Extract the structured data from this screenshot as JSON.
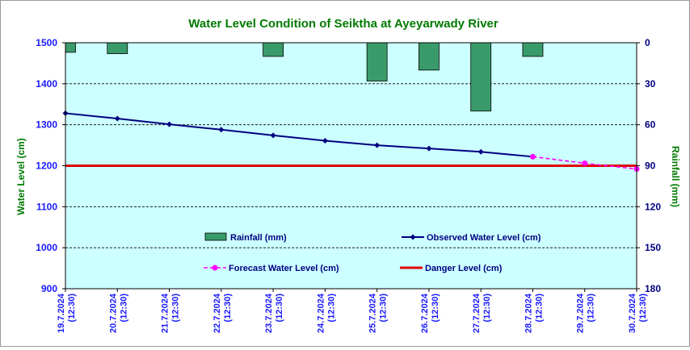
{
  "chart_data": {
    "type": "bar+line",
    "title": "Water Level Condition of Seiktha at Ayeyarwady River",
    "ylabel": "Water Level (cm)",
    "y2label": "Rainfall (mm)",
    "ylim": [
      900,
      1500
    ],
    "y2lim": [
      0,
      180
    ],
    "y2_inverted": true,
    "yticks": [
      "1500",
      "1400",
      "1300",
      "1200",
      "1100",
      "1000",
      "900"
    ],
    "y2ticks": [
      "0",
      "30",
      "60",
      "90",
      "120",
      "150",
      "180"
    ],
    "categories": [
      [
        "19.7.2024",
        "(12:30)"
      ],
      [
        "20.7.2024",
        "(12:30)"
      ],
      [
        "21.7.2024",
        "(12:30)"
      ],
      [
        "22.7.2024",
        "(12:30)"
      ],
      [
        "23.7.2024",
        "(12:30)"
      ],
      [
        "24.7.2024",
        "(12:30)"
      ],
      [
        "25.7.2024",
        "(12:30)"
      ],
      [
        "26.7.2024",
        "(12:30)"
      ],
      [
        "27.7.2024",
        "(12:30)"
      ],
      [
        "28.7.2024",
        "(12:30)"
      ],
      [
        "29.7.2024",
        "(12:30)"
      ],
      [
        "30.7.2024",
        "(12:30)"
      ]
    ],
    "series": [
      {
        "name": "Rainfall (mm)",
        "type": "bar",
        "axis": "y2",
        "values": [
          7,
          8,
          0,
          0,
          10,
          0,
          28,
          20,
          50,
          10,
          0,
          0
        ]
      },
      {
        "name": "Observed Water Level (cm)",
        "type": "line",
        "axis": "y",
        "values": [
          1328,
          1315,
          1301,
          1288,
          1274,
          1261,
          1250,
          1242,
          1234,
          1222,
          null,
          null
        ]
      },
      {
        "name": "Forecast Water Level (cm)",
        "type": "line",
        "axis": "y",
        "style": "dashed",
        "values": [
          null,
          null,
          null,
          null,
          null,
          null,
          null,
          null,
          null,
          1222,
          1206,
          1192
        ]
      },
      {
        "name": "Danger Level (cm)",
        "type": "line",
        "axis": "y",
        "value": 1200
      }
    ],
    "grid": true,
    "legend": "inside-bottom",
    "colors": {
      "plot_bg": "#ccffff",
      "rain": "#3a9b6a",
      "observed": "#000080",
      "forecast": "#ff00ff",
      "danger": "#e00000",
      "title": "#007a00",
      "y_axis_text": "#1a1aff",
      "y2_axis_text": "#007a00",
      "x_axis_text": "#1a1aff"
    }
  }
}
